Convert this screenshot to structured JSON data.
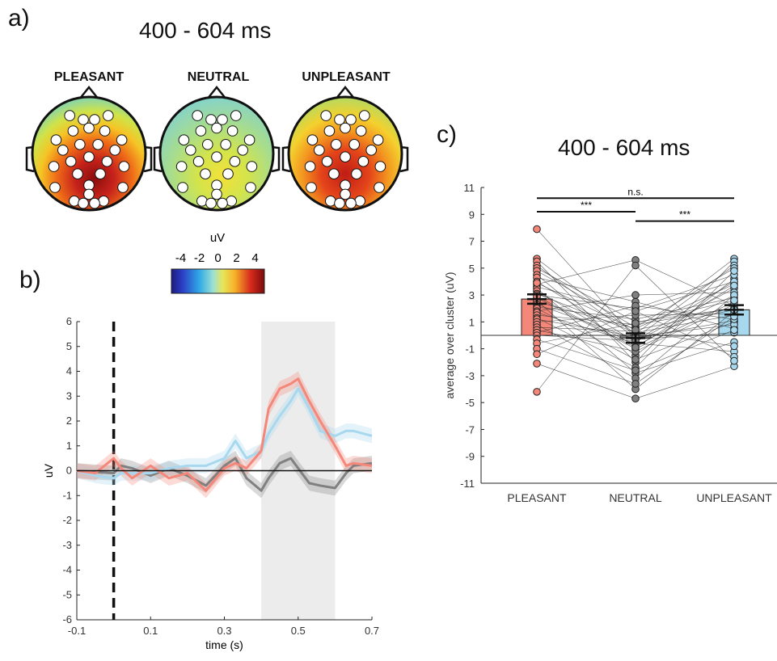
{
  "panels": {
    "a": {
      "letter": "a)",
      "title": "400 - 604 ms"
    },
    "b": {
      "letter": "b)"
    },
    "c": {
      "letter": "c)",
      "title": "400 - 604 ms"
    }
  },
  "topomaps": {
    "conditions": [
      "PLEASANT",
      "NEUTRAL",
      "UNPLEASANT"
    ],
    "colorbar": {
      "label": "uV",
      "ticks": [
        "-4",
        "-2",
        "0",
        "2",
        "4"
      ],
      "range": [
        -5,
        5
      ],
      "colormap": "jet"
    }
  },
  "colors": {
    "pleasant": "#f4877a",
    "neutral": "#808080",
    "unpleasant": "#a7d8ee",
    "window": "#ececec"
  },
  "chart_data": [
    {
      "type": "line",
      "xlabel": "time (s)",
      "ylabel": "uV",
      "xlim": [
        -0.1,
        0.7
      ],
      "ylim": [
        -6,
        6
      ],
      "xticks": [
        "-0.1",
        "0.1",
        "0.3",
        "0.5",
        "0.7"
      ],
      "yticks": [
        "6",
        "5",
        "4",
        "3",
        "2",
        "1",
        "0",
        "-1",
        "-2",
        "-3",
        "-4",
        "-5",
        "-6"
      ],
      "stimulus_onset": 0,
      "highlight_window": [
        0.4,
        0.6
      ],
      "x": [
        -0.1,
        -0.05,
        0,
        0.02,
        0.05,
        0.1,
        0.15,
        0.2,
        0.25,
        0.3,
        0.33,
        0.36,
        0.4,
        0.42,
        0.45,
        0.48,
        0.5,
        0.53,
        0.56,
        0.6,
        0.63,
        0.65,
        0.7
      ],
      "series": [
        {
          "key": "pleasant",
          "values": [
            0,
            -0.1,
            0.5,
            0.1,
            -0.3,
            0.2,
            -0.3,
            -0.1,
            -0.8,
            0.1,
            0.3,
            0.1,
            0.8,
            2.5,
            3.3,
            3.5,
            3.7,
            2.8,
            2.0,
            1.0,
            0.2,
            0.3,
            0.2
          ]
        },
        {
          "key": "neutral",
          "values": [
            0,
            -0.05,
            -0.1,
            0.2,
            0.1,
            -0.2,
            0.1,
            -0.2,
            -0.6,
            0.2,
            0.5,
            -0.3,
            -0.8,
            -0.3,
            0.3,
            0.5,
            0.1,
            -0.5,
            -0.6,
            -0.7,
            -0.1,
            0.2,
            0.3
          ]
        },
        {
          "key": "unpleasant",
          "values": [
            0,
            -0.2,
            -0.3,
            -0.1,
            -0.1,
            -0.1,
            0.1,
            0.2,
            0.2,
            0.5,
            1.2,
            0.5,
            0.8,
            1.5,
            2.2,
            2.8,
            3.3,
            2.5,
            1.6,
            1.4,
            1.6,
            1.6,
            1.4
          ]
        }
      ]
    },
    {
      "type": "bar",
      "title": "400 - 604 ms",
      "ylabel": "average over cluster (uV)",
      "categories": [
        "PLEASANT",
        "NEUTRAL",
        "UNPLEASANT"
      ],
      "ylim": [
        -11,
        11
      ],
      "yticks": [
        "11",
        "9",
        "7",
        "5",
        "3",
        "1",
        "-1",
        "-3",
        "-5",
        "-7",
        "-9",
        "-11"
      ],
      "values": [
        2.7,
        -0.2,
        1.9
      ],
      "sem": [
        0.35,
        0.35,
        0.35
      ],
      "significance": [
        {
          "pair": [
            0,
            1
          ],
          "label": "***",
          "y": 9.2
        },
        {
          "pair": [
            1,
            2
          ],
          "label": "***",
          "y": 8.5
        },
        {
          "pair": [
            0,
            2
          ],
          "label": "n.s.",
          "y": 10.2
        }
      ],
      "subjects": [
        [
          7.9,
          -0.2,
          1.1
        ],
        [
          5.7,
          0.1,
          5.7
        ],
        [
          5.5,
          -2.0,
          5.5
        ],
        [
          5.2,
          -0.2,
          5.2
        ],
        [
          5.0,
          1.0,
          2.0
        ],
        [
          4.8,
          0.6,
          5.0
        ],
        [
          4.5,
          -1.5,
          4.2
        ],
        [
          4.3,
          2.5,
          0.5
        ],
        [
          4.0,
          -0.5,
          3.5
        ],
        [
          3.8,
          5.6,
          2.2
        ],
        [
          3.6,
          1.8,
          4.0
        ],
        [
          3.5,
          -2.8,
          -0.5
        ],
        [
          3.3,
          -0.8,
          3.0
        ],
        [
          3.1,
          0.2,
          1.5
        ],
        [
          3.0,
          2.0,
          4.5
        ],
        [
          2.8,
          -1.0,
          2.5
        ],
        [
          2.6,
          -4.0,
          1.8
        ],
        [
          2.5,
          0.5,
          3.8
        ],
        [
          2.3,
          -0.3,
          0.2
        ],
        [
          2.1,
          1.2,
          2.8
        ],
        [
          2.0,
          -1.8,
          1.0
        ],
        [
          1.8,
          3.0,
          3.2
        ],
        [
          1.7,
          -0.6,
          -1.2
        ],
        [
          1.5,
          0.8,
          2.0
        ],
        [
          1.3,
          -2.4,
          4.8
        ],
        [
          1.2,
          -0.1,
          0.8
        ],
        [
          1.0,
          1.5,
          1.6
        ],
        [
          0.8,
          -3.2,
          3.0
        ],
        [
          0.6,
          0.3,
          -0.8
        ],
        [
          0.4,
          -1.2,
          2.3
        ],
        [
          0.2,
          2.2,
          1.2
        ],
        [
          0.0,
          -0.4,
          4.0
        ],
        [
          -0.3,
          -2.6,
          0.4
        ],
        [
          -0.6,
          0.9,
          2.6
        ],
        [
          -1.0,
          -3.6,
          1.4
        ],
        [
          -1.4,
          1.8,
          -1.6
        ],
        [
          -2.1,
          -4.7,
          -2.3
        ],
        [
          -4.2,
          5.2,
          -1.9
        ],
        [
          2.9,
          -0.9,
          3.7
        ],
        [
          3.9,
          0.4,
          1.9
        ]
      ]
    }
  ]
}
